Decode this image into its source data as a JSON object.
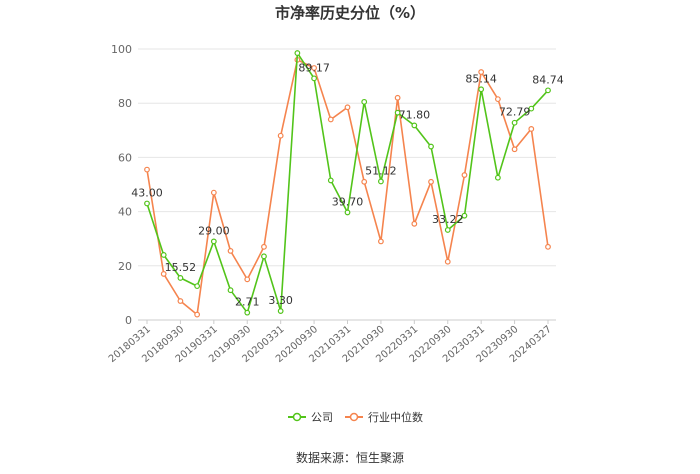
{
  "chart_data": {
    "type": "line",
    "title": "市净率历史分位（%）",
    "source": "数据来源：恒生聚源",
    "ylim": [
      0,
      100
    ],
    "yticks": [
      0,
      20,
      40,
      60,
      80,
      100
    ],
    "grid": true,
    "legend_position": "bottom",
    "x_count": 25,
    "xtick_labels": [
      {
        "i": 0,
        "label": "20180331"
      },
      {
        "i": 2,
        "label": "20180930"
      },
      {
        "i": 4,
        "label": "20190331"
      },
      {
        "i": 6,
        "label": "20190930"
      },
      {
        "i": 8,
        "label": "20200331"
      },
      {
        "i": 10,
        "label": "20200930"
      },
      {
        "i": 12,
        "label": "20210331"
      },
      {
        "i": 14,
        "label": "20210930"
      },
      {
        "i": 16,
        "label": "20220331"
      },
      {
        "i": 18,
        "label": "20220930"
      },
      {
        "i": 20,
        "label": "20230331"
      },
      {
        "i": 22,
        "label": "20230930"
      },
      {
        "i": 24,
        "label": "20240327"
      }
    ],
    "series": [
      {
        "name": "公司",
        "color": "#52c41a",
        "values": [
          43.0,
          24,
          15.52,
          12.5,
          29.0,
          11,
          2.71,
          23.5,
          3.3,
          98.5,
          89.17,
          51.5,
          39.7,
          80.5,
          51.12,
          76.5,
          71.8,
          64,
          33.22,
          38.5,
          85.14,
          52.5,
          72.79,
          78,
          84.74
        ],
        "labels": {
          "0": "43.00",
          "2": "15.52",
          "4": "29.00",
          "6": "2.71",
          "8": "3.30",
          "10": "89.17",
          "12": "39.70",
          "14": "51.12",
          "16": "71.80",
          "18": "33.22",
          "20": "85.14",
          "22": "72.79",
          "24": "84.74"
        }
      },
      {
        "name": "行业中位数",
        "color": "#f5844e",
        "values": [
          55.5,
          17,
          7,
          2,
          47,
          25.5,
          15,
          27,
          68,
          96,
          93,
          74,
          78.5,
          51,
          29,
          82,
          35.5,
          51,
          21.5,
          53.5,
          91.5,
          81.5,
          63,
          70.5,
          27
        ]
      }
    ]
  }
}
